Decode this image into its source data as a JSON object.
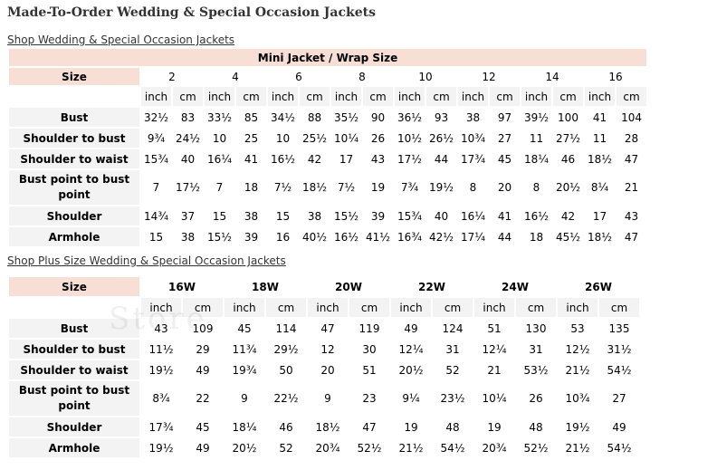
{
  "page": {
    "title": "Made-To-Order Wedding & Special Occasion Jackets",
    "link_regular": "Shop Wedding & Special Occasion Jackets",
    "link_plus": "Shop Plus Size Wedding & Special Occasion Jackets",
    "watermark": "Store"
  },
  "colors": {
    "header_bg": "#f7dfd5",
    "cell_bg": "#f3f3f3",
    "value_bg": "#ffffff"
  },
  "regular": {
    "caption": "Mini Jacket / Wrap Size",
    "size_label": "Size",
    "sizes": [
      "2",
      "4",
      "6",
      "8",
      "10",
      "12",
      "14",
      "16"
    ],
    "units": [
      "inch",
      "cm",
      "inch",
      "cm",
      "inch",
      "cm",
      "inch",
      "cm",
      "inch",
      "cm",
      "inch",
      "cm",
      "inch",
      "cm",
      "inch",
      "cm"
    ],
    "rows": [
      {
        "label": "Bust",
        "values": [
          "32½",
          "83",
          "33½",
          "85",
          "34½",
          "88",
          "35½",
          "90",
          "36½",
          "93",
          "38",
          "97",
          "39½",
          "100",
          "41",
          "104"
        ]
      },
      {
        "label": "Shoulder to bust",
        "values": [
          "9¾",
          "24½",
          "10",
          "25",
          "10",
          "25½",
          "10¼",
          "26",
          "10½",
          "26½",
          "10¾",
          "27",
          "11",
          "27½",
          "11",
          "28"
        ]
      },
      {
        "label": "Shoulder to waist",
        "values": [
          "15¾",
          "40",
          "16¼",
          "41",
          "16½",
          "42",
          "17",
          "43",
          "17½",
          "44",
          "17¾",
          "45",
          "18¼",
          "46",
          "18½",
          "47"
        ]
      },
      {
        "label": "Bust point to bust point",
        "values": [
          "7",
          "17½",
          "7",
          "18",
          "7½",
          "18½",
          "7½",
          "19",
          "7¾",
          "19½",
          "8",
          "20",
          "8",
          "20½",
          "8¼",
          "21"
        ]
      },
      {
        "label": "Shoulder",
        "values": [
          "14¾",
          "37",
          "15",
          "38",
          "15",
          "38",
          "15½",
          "39",
          "15¾",
          "40",
          "16¼",
          "41",
          "16½",
          "42",
          "17",
          "43"
        ]
      },
      {
        "label": "Armhole",
        "values": [
          "15",
          "38",
          "15½",
          "39",
          "16",
          "40½",
          "16½",
          "41½",
          "16¾",
          "42½",
          "17¼",
          "44",
          "18",
          "45½",
          "18½",
          "47"
        ]
      }
    ]
  },
  "plus": {
    "size_label": "Size",
    "sizes": [
      "16W",
      "18W",
      "20W",
      "22W",
      "24W",
      "26W"
    ],
    "units": [
      "inch",
      "cm",
      "inch",
      "cm",
      "inch",
      "cm",
      "inch",
      "cm",
      "inch",
      "cm",
      "inch",
      "cm"
    ],
    "rows": [
      {
        "label": "Bust",
        "values": [
          "43",
          "109",
          "45",
          "114",
          "47",
          "119",
          "49",
          "124",
          "51",
          "130",
          "53",
          "135"
        ]
      },
      {
        "label": "Shoulder to bust",
        "values": [
          "11½",
          "29",
          "11¾",
          "29½",
          "12",
          "30",
          "12¼",
          "31",
          "12¼",
          "31",
          "12½",
          "31½"
        ]
      },
      {
        "label": "Shoulder to waist",
        "values": [
          "19½",
          "49",
          "19¾",
          "50",
          "20",
          "51",
          "20½",
          "52",
          "21",
          "53½",
          "21½",
          "54½"
        ]
      },
      {
        "label": "Bust point to bust point",
        "values": [
          "8¾",
          "22",
          "9",
          "22½",
          "9",
          "23",
          "9¼",
          "23½",
          "10¼",
          "26",
          "10¾",
          "27"
        ]
      },
      {
        "label": "Shoulder",
        "values": [
          "17¾",
          "45",
          "18¼",
          "46",
          "18½",
          "47",
          "19",
          "48",
          "19",
          "48",
          "19½",
          "49"
        ]
      },
      {
        "label": "Armhole",
        "values": [
          "19½",
          "49",
          "20½",
          "52",
          "20¾",
          "52½",
          "21½",
          "54½",
          "20¾",
          "52½",
          "21½",
          "54½"
        ]
      }
    ]
  }
}
